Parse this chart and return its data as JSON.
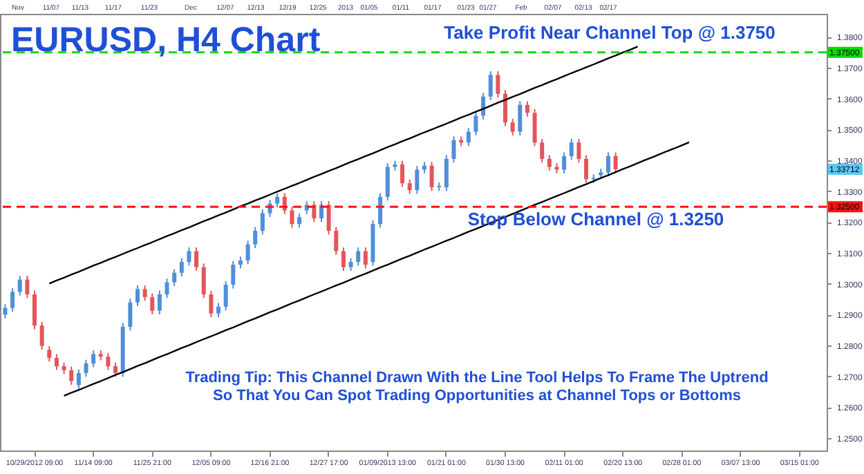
{
  "chart_data": {
    "type": "candlestick",
    "title": "EURUSD, H4 Chart",
    "annotations": [
      "Take Profit Near Channel Top @ 1.3750",
      "Stop Below Channel @ 1.3250",
      "Trading Tip: This Channel Drawn With the Line Tool Helps To Frame The Uptrend\nSo That You Can Spot Trading Opportunities at Channel Tops or Bottoms",
      {
        "text": "1.33712",
        "y": 1.33712
      },
      "Nov",
      "11/07",
      "11/13",
      "11/17",
      "11/23",
      "Dec",
      "12/07",
      "12/13",
      "12/19",
      "12/25",
      "2013",
      "01/05",
      "01/11",
      "01/17",
      "01/23",
      "01/27",
      "Feb",
      "02/07",
      "02/13",
      "02/17"
    ],
    "categories": [
      null,
      null,
      null,
      null,
      "10/29/2012 09:00",
      null,
      null,
      null,
      null,
      null,
      null,
      null,
      "11/14 09:00",
      null,
      null,
      null,
      null,
      null,
      null,
      null,
      "11/25 21:00",
      null,
      null,
      null,
      null,
      null,
      null,
      null,
      "12/05 09:00",
      null,
      null,
      null,
      null,
      null,
      null,
      null,
      "12/16 21:00",
      null,
      null,
      null,
      null,
      null,
      null,
      null,
      "12/27 17:00",
      null,
      null,
      null,
      null,
      null,
      null,
      null,
      "01/09/2013 13:00",
      null,
      null,
      null,
      null,
      null,
      null,
      null,
      "01/21 01:00",
      null,
      null,
      null,
      null,
      null,
      null,
      null,
      "01/30 13:00",
      null,
      null,
      null,
      null,
      null,
      null,
      null,
      "02/11 01:00",
      null,
      null,
      null,
      null,
      null,
      null,
      null,
      "02/20 13:00",
      null,
      null,
      null,
      null,
      null,
      null,
      null,
      "02/28 01:00",
      null,
      null,
      null,
      null,
      null,
      null,
      null,
      "03/07 13:00",
      null,
      null,
      null,
      null,
      null,
      null,
      null,
      "03/15 01:00",
      null,
      null,
      null
    ],
    "ohlc": [
      [
        1.29,
        1.2934,
        1.2888,
        1.2922
      ],
      [
        1.2922,
        1.2986,
        1.291,
        1.2974
      ],
      [
        1.2974,
        1.3026,
        1.2962,
        1.3014
      ],
      [
        1.3014,
        1.3026,
        1.2954,
        1.2966
      ],
      [
        1.2966,
        1.2978,
        1.2853,
        1.2865
      ],
      [
        1.2865,
        1.2877,
        1.2787,
        1.2799
      ],
      [
        1.2786,
        1.2798,
        1.2748,
        1.276
      ],
      [
        1.276,
        1.2772,
        1.2721,
        1.2733
      ],
      [
        1.2733,
        1.2745,
        1.2708,
        1.272
      ],
      [
        1.272,
        1.2732,
        1.2673,
        1.2685
      ],
      [
        1.2672,
        1.2723,
        1.266,
        1.2711
      ],
      [
        1.2711,
        1.2754,
        1.2699,
        1.2742
      ],
      [
        1.2742,
        1.2785,
        1.273,
        1.2773
      ],
      [
        1.2773,
        1.2785,
        1.2752,
        1.2764
      ],
      [
        1.2764,
        1.2776,
        1.2721,
        1.2733
      ],
      [
        1.2733,
        1.2745,
        1.2699,
        1.2711
      ],
      [
        1.2711,
        1.2873,
        1.2699,
        1.2861
      ],
      [
        1.2861,
        1.2952,
        1.2849,
        1.294
      ],
      [
        1.294,
        1.2995,
        1.2928,
        1.2983
      ],
      [
        1.2983,
        1.2995,
        1.2945,
        1.2957
      ],
      [
        1.2957,
        1.2969,
        1.2901,
        1.2913
      ],
      [
        1.2913,
        1.2978,
        1.2901,
        1.2966
      ],
      [
        1.2966,
        1.3017,
        1.2954,
        1.3005
      ],
      [
        1.3005,
        1.3048,
        1.2993,
        1.3036
      ],
      [
        1.3036,
        1.3083,
        1.3024,
        1.3071
      ],
      [
        1.3071,
        1.3118,
        1.3059,
        1.3106
      ],
      [
        1.3106,
        1.3118,
        1.3042,
        1.3054
      ],
      [
        1.3054,
        1.3066,
        1.2954,
        1.2966
      ],
      [
        1.2966,
        1.2978,
        1.2892,
        1.2904
      ],
      [
        1.2904,
        1.2938,
        1.2892,
        1.2926
      ],
      [
        1.2926,
        1.3009,
        1.2914,
        1.2997
      ],
      [
        1.2997,
        1.3074,
        1.2985,
        1.3062
      ],
      [
        1.3062,
        1.3088,
        1.305,
        1.3076
      ],
      [
        1.3076,
        1.314,
        1.3064,
        1.3128
      ],
      [
        1.3128,
        1.3184,
        1.3116,
        1.3172
      ],
      [
        1.3172,
        1.3241,
        1.316,
        1.3229
      ],
      [
        1.3229,
        1.3272,
        1.3217,
        1.326
      ],
      [
        1.326,
        1.3294,
        1.3248,
        1.3282
      ],
      [
        1.3282,
        1.3294,
        1.3226,
        1.3238
      ],
      [
        1.3238,
        1.325,
        1.3182,
        1.3194
      ],
      [
        1.3194,
        1.3228,
        1.3182,
        1.3216
      ],
      [
        1.3238,
        1.3268,
        1.3226,
        1.3256
      ],
      [
        1.3256,
        1.3268,
        1.32,
        1.3212
      ],
      [
        1.3212,
        1.3268,
        1.32,
        1.3256
      ],
      [
        1.3256,
        1.3268,
        1.316,
        1.3172
      ],
      [
        1.3172,
        1.3184,
        1.3094,
        1.3106
      ],
      [
        1.3106,
        1.3118,
        1.3042,
        1.3054
      ],
      [
        1.3054,
        1.3083,
        1.3042,
        1.3071
      ],
      [
        1.3071,
        1.3118,
        1.3059,
        1.3106
      ],
      [
        1.3106,
        1.3118,
        1.305,
        1.3062
      ],
      [
        1.3071,
        1.3206,
        1.3059,
        1.3194
      ],
      [
        1.3194,
        1.3294,
        1.3182,
        1.3282
      ],
      [
        1.3282,
        1.3391,
        1.327,
        1.3379
      ],
      [
        1.3379,
        1.3399,
        1.3367,
        1.3387
      ],
      [
        1.3387,
        1.3399,
        1.3314,
        1.3326
      ],
      [
        1.3326,
        1.3338,
        1.3292,
        1.3304
      ],
      [
        1.3304,
        1.3382,
        1.3292,
        1.337
      ],
      [
        1.337,
        1.3395,
        1.3358,
        1.3383
      ],
      [
        1.3383,
        1.3395,
        1.3301,
        1.3313
      ],
      [
        1.3313,
        1.3329,
        1.3301,
        1.3317
      ],
      [
        1.3313,
        1.3417,
        1.3301,
        1.3405
      ],
      [
        1.3405,
        1.3478,
        1.3393,
        1.3466
      ],
      [
        1.3466,
        1.3478,
        1.3446,
        1.3458
      ],
      [
        1.3458,
        1.3505,
        1.3446,
        1.3493
      ],
      [
        1.3493,
        1.3557,
        1.3481,
        1.3545
      ],
      [
        1.3545,
        1.3619,
        1.3533,
        1.3607
      ],
      [
        1.3607,
        1.3689,
        1.3595,
        1.3677
      ],
      [
        1.3677,
        1.3689,
        1.3604,
        1.3616
      ],
      [
        1.3616,
        1.3628,
        1.3511,
        1.3523
      ],
      [
        1.3523,
        1.3535,
        1.3481,
        1.3493
      ],
      [
        1.3493,
        1.3592,
        1.3481,
        1.358
      ],
      [
        1.358,
        1.3592,
        1.3542,
        1.3554
      ],
      [
        1.3554,
        1.3566,
        1.3446,
        1.3458
      ],
      [
        1.3458,
        1.347,
        1.3393,
        1.3405
      ],
      [
        1.3405,
        1.3417,
        1.3367,
        1.3379
      ],
      [
        1.3379,
        1.3391,
        1.3358,
        1.337
      ],
      [
        1.337,
        1.3426,
        1.3358,
        1.3414
      ],
      [
        1.3414,
        1.347,
        1.3402,
        1.3458
      ],
      [
        1.3458,
        1.347,
        1.3393,
        1.3405
      ],
      [
        1.3405,
        1.3417,
        1.3327,
        1.3339
      ],
      [
        1.3339,
        1.3355,
        1.3327,
        1.3343
      ],
      [
        1.3352,
        1.3373,
        1.334,
        1.3361
      ],
      [
        1.3361,
        1.3426,
        1.3349,
        1.3414
      ],
      [
        1.3414,
        1.3426,
        1.33592,
        1.33712
      ],
      null,
      null,
      null,
      null,
      null,
      null,
      null,
      null,
      null,
      null,
      null,
      null,
      null,
      null,
      null,
      null,
      null,
      null,
      null,
      null,
      null,
      null,
      null,
      null,
      null,
      null,
      null,
      null
    ],
    "colors": [
      "#4f8fd8",
      "#4f8fd8",
      "#4f8fd8",
      "#e2565a",
      "#e2565a",
      "#e2565a",
      "#e2565a",
      "#e2565a",
      "#e2565a",
      "#e2565a",
      "#4f8fd8",
      "#4f8fd8",
      "#4f8fd8",
      "#e2565a",
      "#e2565a",
      "#e2565a",
      "#4f8fd8",
      "#4f8fd8",
      "#4f8fd8",
      "#e2565a",
      "#e2565a",
      "#4f8fd8",
      "#4f8fd8",
      "#4f8fd8",
      "#4f8fd8",
      "#4f8fd8",
      "#e2565a",
      "#e2565a",
      "#e2565a",
      "#4f8fd8",
      "#4f8fd8",
      "#4f8fd8",
      "#4f8fd8",
      "#4f8fd8",
      "#4f8fd8",
      "#4f8fd8",
      "#4f8fd8",
      "#4f8fd8",
      "#e2565a",
      "#e2565a",
      "#4f8fd8",
      "#4f8fd8",
      "#e2565a",
      "#4f8fd8",
      "#e2565a",
      "#e2565a",
      "#e2565a",
      "#4f8fd8",
      "#4f8fd8",
      "#e2565a",
      "#4f8fd8",
      "#4f8fd8",
      "#4f8fd8",
      "#4f8fd8",
      "#e2565a",
      "#e2565a",
      "#4f8fd8",
      "#4f8fd8",
      "#e2565a",
      "#4f8fd8",
      "#4f8fd8",
      "#4f8fd8",
      "#e2565a",
      "#4f8fd8",
      "#4f8fd8",
      "#4f8fd8",
      "#4f8fd8",
      "#e2565a",
      "#e2565a",
      "#e2565a",
      "#4f8fd8",
      "#e2565a",
      "#e2565a",
      "#e2565a",
      "#e2565a",
      "#e2565a",
      "#4f8fd8",
      "#4f8fd8",
      "#e2565a",
      "#e2565a",
      "#4f8fd8",
      "#4f8fd8",
      "#4f8fd8",
      "#e2565a",
      null,
      null,
      null,
      null,
      null,
      null,
      null,
      null,
      null,
      null,
      null,
      null,
      null,
      null,
      null,
      null,
      null,
      null,
      null,
      null,
      null,
      null,
      null,
      null,
      null,
      null,
      null,
      null
    ],
    "series": [
      {
        "type": "line",
        "color": "#000000",
        "values": [
          null,
          null,
          null,
          null,
          null,
          null,
          1.3001,
          1.3011,
          1.302,
          1.303,
          1.3039,
          1.3049,
          1.3059,
          1.3068,
          1.3078,
          1.3087,
          1.3097,
          1.3107,
          1.3116,
          1.3126,
          1.3135,
          1.3145,
          1.3155,
          1.3164,
          1.3174,
          1.3183,
          1.3193,
          1.3203,
          1.3212,
          1.3222,
          1.3231,
          1.3241,
          1.3251,
          1.326,
          1.327,
          1.3279,
          1.3289,
          1.3299,
          1.3308,
          1.3318,
          1.3327,
          1.3337,
          1.3347,
          1.3356,
          1.3366,
          1.3375,
          1.3385,
          1.3395,
          1.3404,
          1.3414,
          1.3423,
          1.3433,
          1.3443,
          1.3452,
          1.3462,
          1.3471,
          1.3481,
          1.3491,
          1.35,
          1.351,
          1.3519,
          1.3529,
          1.3539,
          1.3548,
          1.3558,
          1.3567,
          1.3577,
          1.3587,
          1.3596,
          1.3606,
          1.3615,
          1.3625,
          1.3635,
          1.3644,
          1.3654,
          1.3663,
          1.3673,
          1.3683,
          1.3692,
          1.3702,
          1.3711,
          1.3721,
          1.3731,
          1.374,
          1.375,
          1.3759,
          1.3769,
          null,
          null,
          null,
          null,
          null,
          null,
          null,
          null,
          null,
          null,
          null,
          null,
          null,
          null,
          null,
          null,
          null,
          null,
          null,
          null,
          null,
          null,
          null,
          null,
          null
        ]
      },
      {
        "type": "line",
        "color": "#000000",
        "values": [
          null,
          null,
          null,
          null,
          null,
          null,
          null,
          null,
          1.2637,
          1.2647,
          1.2656,
          1.2666,
          1.2676,
          1.2685,
          1.2695,
          1.2705,
          1.2714,
          1.2724,
          1.2734,
          1.2743,
          1.2753,
          1.2763,
          1.2772,
          1.2782,
          1.2792,
          1.2801,
          1.2811,
          1.2821,
          1.283,
          1.284,
          1.285,
          1.2859,
          1.2869,
          1.2879,
          1.2888,
          1.2898,
          1.2908,
          1.2917,
          1.2927,
          1.2937,
          1.2946,
          1.2956,
          1.2966,
          1.2975,
          1.2985,
          1.2995,
          1.3004,
          1.3014,
          1.3024,
          1.3033,
          1.3043,
          1.3053,
          1.3062,
          1.3072,
          1.3082,
          1.3091,
          1.3101,
          1.3111,
          1.312,
          1.313,
          1.314,
          1.3149,
          1.3159,
          1.3169,
          1.3178,
          null,
          null,
          null,
          null,
          null,
          null,
          1.3246,
          1.3256,
          1.3265,
          1.3275,
          1.3285,
          1.3294,
          1.3304,
          1.3314,
          1.3323,
          1.3333,
          1.3343,
          1.3352,
          1.3362,
          1.3372,
          1.3381,
          1.3391,
          1.3401,
          1.341,
          1.342,
          1.343,
          1.3439,
          1.3449,
          1.3459,
          null,
          null,
          null,
          null,
          null,
          null,
          null,
          null,
          null,
          null,
          null,
          null,
          null,
          null,
          null,
          null,
          null,
          null
        ]
      }
    ],
    "line_style": "solid",
    "marker": "none",
    "ylim": [
      1.246,
      1.3875
    ],
    "yticks": [
      {
        "value": 1.25,
        "label": "1.2500"
      },
      {
        "value": 1.26,
        "label": "1.2600"
      },
      {
        "value": 1.27,
        "label": "1.2700"
      },
      {
        "value": 1.28,
        "label": "1.2800"
      },
      {
        "value": 1.29,
        "label": "1.2900"
      },
      {
        "value": 1.3,
        "label": "1.3000"
      },
      {
        "value": 1.31,
        "label": "1.3100"
      },
      {
        "value": 1.32,
        "label": "1.3200"
      },
      {
        "value": 1.33,
        "label": "1.3300"
      },
      {
        "value": 1.34,
        "label": "1.3400"
      },
      {
        "value": 1.35,
        "label": "1.3500"
      },
      {
        "value": 1.36,
        "label": "1.3600"
      },
      {
        "value": 1.37,
        "label": "1.3700"
      },
      {
        "value": 1.38,
        "label": "1.3800"
      }
    ],
    "ref_lines": [
      {
        "axis": "y",
        "value": 1.375,
        "label": "1.37500",
        "color": "#00dd00",
        "line_style": "dashed"
      },
      {
        "axis": "y",
        "value": 1.325,
        "label": "1.32500",
        "color": "#ff1111",
        "line_style": "dashed"
      }
    ],
    "grid": false
  }
}
